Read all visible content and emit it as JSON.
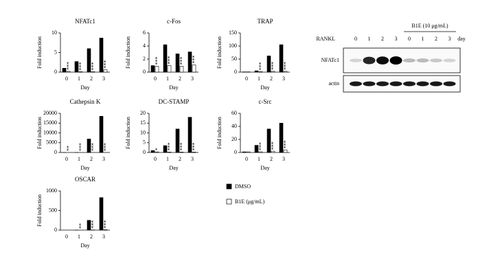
{
  "chart_data": [
    {
      "type": "bar",
      "title": "NFATc1",
      "y_label": "Fold induction",
      "x_label": "Day",
      "categories": [
        "0",
        "1",
        "2",
        "3"
      ],
      "series": [
        {
          "values": [
            1,
            2.7,
            6,
            8.7
          ]
        },
        {
          "values": [
            0.2,
            0.1,
            0.1,
            0.6
          ]
        }
      ],
      "annotations": [
        "***",
        "***",
        "***",
        "***"
      ],
      "ylim": [
        0,
        10
      ],
      "yticks": [
        0,
        5,
        10
      ]
    },
    {
      "type": "bar",
      "title": "c-Fos",
      "y_label": "Fold induction",
      "x_label": "Day",
      "categories": [
        "0",
        "1",
        "2",
        "3"
      ],
      "series": [
        {
          "values": [
            1,
            4.2,
            2.8,
            3.1
          ]
        },
        {
          "values": [
            0.9,
            1.0,
            0.9,
            1.1
          ]
        }
      ],
      "annotations": [
        "***",
        "***",
        "***",
        "***"
      ],
      "ylim": [
        0,
        6
      ],
      "yticks": [
        0,
        2,
        4,
        6
      ]
    },
    {
      "type": "bar",
      "title": "TRAP",
      "y_label": "Fold induction",
      "x_label": "Day",
      "categories": [
        "0",
        "1",
        "2",
        "3"
      ],
      "series": [
        {
          "values": [
            1,
            5,
            62,
            105
          ]
        },
        {
          "values": [
            1,
            2,
            3,
            3
          ]
        }
      ],
      "annotations": [
        null,
        "***",
        "***",
        "***"
      ],
      "ylim": [
        0,
        150
      ],
      "yticks": [
        0,
        50,
        100,
        150
      ]
    },
    {
      "type": "bar",
      "title": "Cathepsin K",
      "y_label": "Fold induction",
      "x_label": "Day",
      "categories": [
        "0",
        "1",
        "2",
        "3"
      ],
      "series": [
        {
          "values": [
            10,
            20,
            6900,
            18500
          ]
        },
        {
          "values": [
            0,
            0,
            0,
            0
          ]
        }
      ],
      "annotations": [
        "**",
        "***",
        "***",
        "***"
      ],
      "ylim": [
        0,
        20000
      ],
      "yticks": [
        0,
        5000,
        10000,
        15000,
        20000
      ]
    },
    {
      "type": "bar",
      "title": "DC-STAMP",
      "y_label": "Fold induction",
      "x_label": "Day",
      "categories": [
        "0",
        "1",
        "2",
        "3"
      ],
      "series": [
        {
          "values": [
            1,
            3.5,
            12,
            18
          ]
        },
        {
          "values": [
            0.3,
            0.2,
            0.2,
            0.2
          ]
        }
      ],
      "annotations": [
        "*",
        "***",
        "***",
        "***"
      ],
      "ylim": [
        0,
        20
      ],
      "yticks": [
        0,
        5,
        10,
        15,
        20
      ]
    },
    {
      "type": "bar",
      "title": "c-Src",
      "y_label": "Fold induction",
      "x_label": "Day",
      "categories": [
        "0",
        "1",
        "2",
        "3"
      ],
      "series": [
        {
          "values": [
            1,
            11,
            36,
            45
          ]
        },
        {
          "values": [
            1,
            1,
            2,
            4
          ]
        }
      ],
      "annotations": [
        null,
        "***",
        "***",
        "***"
      ],
      "ylim": [
        0,
        60
      ],
      "yticks": [
        0,
        20,
        40,
        60
      ]
    },
    {
      "type": "bar",
      "title": "OSCAR",
      "y_label": "Fold induction",
      "x_label": "Day",
      "categories": [
        "0",
        "1",
        "2",
        "3"
      ],
      "series": [
        {
          "values": [
            0,
            1,
            250,
            830
          ]
        },
        {
          "values": [
            0,
            0,
            5,
            10
          ]
        }
      ],
      "annotations": [
        null,
        "**",
        "***",
        "***"
      ],
      "ylim": [
        0,
        1000
      ],
      "yticks": [
        0,
        500,
        1000
      ]
    }
  ],
  "legend": [
    {
      "name": "DMSO",
      "color": "#000000"
    },
    {
      "name": "B1E (μg/mL)",
      "color": "#ffffff"
    }
  ],
  "blot": {
    "header": "RANKL",
    "treatment": "B1E (10 μg/mL)",
    "lanes": [
      "0",
      "1",
      "2",
      "3",
      "0",
      "1",
      "2",
      "3"
    ],
    "lane_unit": "day",
    "rows": [
      "NFATc1",
      "actin"
    ]
  }
}
